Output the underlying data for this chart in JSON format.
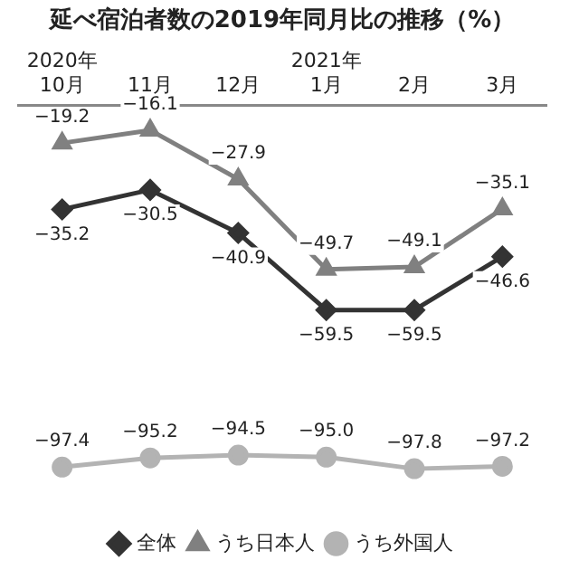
{
  "chart_data": {
    "type": "line",
    "title": "延べ宿泊者数の2019年同月比の推移（%）",
    "categories": [
      "2020年\n10月",
      "11月",
      "12月",
      "2021年\n1月",
      "2月",
      "3月"
    ],
    "series": [
      {
        "name": "全体",
        "color": "#333333",
        "marker": "diamond",
        "values": [
          -35.2,
          -30.5,
          -40.9,
          -59.5,
          -59.5,
          -46.6
        ],
        "value_labels": [
          "−35.2",
          "−30.5",
          "−40.9",
          "−59.5",
          "−59.5",
          "−46.6"
        ]
      },
      {
        "name": "うち日本人",
        "color": "#808080",
        "marker": "triangle",
        "values": [
          -19.2,
          -16.1,
          -27.9,
          -49.7,
          -49.1,
          -35.1
        ],
        "value_labels": [
          "−19.2",
          "−16.1",
          "−27.9",
          "−49.7",
          "−49.1",
          "−35.1"
        ]
      },
      {
        "name": "うち外国人",
        "color": "#b3b3b3",
        "marker": "circle",
        "values": [
          -97.4,
          -95.2,
          -94.5,
          -95.0,
          -97.8,
          -97.2
        ],
        "value_labels": [
          "−97.4",
          "−95.2",
          "−94.5",
          "−95.0",
          "−97.8",
          "−97.2"
        ]
      }
    ],
    "grid": false,
    "legend": "bottom"
  }
}
